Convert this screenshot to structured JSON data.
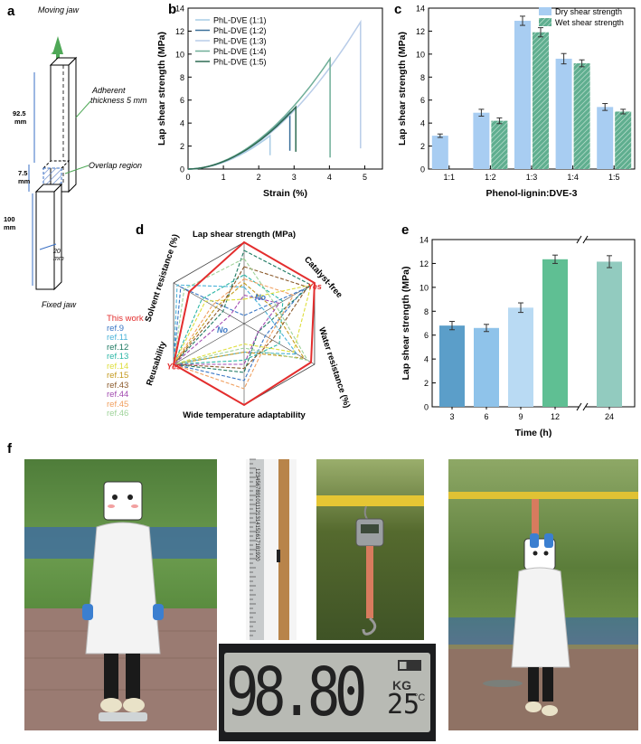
{
  "panel_labels": {
    "a": "a",
    "b": "b",
    "c": "c",
    "d": "d",
    "e": "e",
    "f": "f"
  },
  "colors": {
    "dry": "#a8cdf2",
    "wet": "#5fae8f",
    "bar_e": [
      "#5b9ec9",
      "#8fc3ea",
      "#b9daf3",
      "#5fbf93",
      "#92cbbf"
    ],
    "this_work": "#e32d2d"
  },
  "schematic": {
    "top": "Moving jaw",
    "bottom": "Fixed jaw",
    "adherent": [
      "Adherent",
      "thickness 5 mm"
    ],
    "overlap": "Overlap region",
    "dims": {
      "d1": [
        "92.5",
        "mm"
      ],
      "d2": [
        "7.5",
        "mm"
      ],
      "d3": [
        "100",
        "mm"
      ],
      "width": [
        "20",
        "mm"
      ]
    }
  },
  "chart_data": [
    {
      "id": "b",
      "type": "line",
      "xlabel": "Strain (%)",
      "ylabel": "Lap shear strength (MPa)",
      "xlim": [
        0,
        5.5
      ],
      "ylim": [
        0,
        14
      ],
      "xticks": [
        "0",
        "1",
        "2",
        "3",
        "4",
        "5"
      ],
      "yticks": [
        "0",
        "2",
        "4",
        "6",
        "8",
        "10",
        "12",
        "14"
      ],
      "series": [
        {
          "name": "PhL-DVE (1:1)",
          "color": "#a9cce5",
          "break_strain": 2.32,
          "peak": 2.9,
          "drop_to": 1.2
        },
        {
          "name": "PhL-DVE (1:2)",
          "color": "#3a6f9a",
          "break_strain": 2.88,
          "peak": 4.9,
          "drop_to": 1.6
        },
        {
          "name": "PhL-DVE (1:3)",
          "color": "#b8cce8",
          "break_strain": 4.88,
          "peak": 12.8,
          "drop_to": 1.8
        },
        {
          "name": "PhL-DVE (1:4)",
          "color": "#6fae98",
          "break_strain": 4.02,
          "peak": 9.6,
          "drop_to": 1.0
        },
        {
          "name": "PhL-DVE (1:5)",
          "color": "#2e6b52",
          "break_strain": 3.05,
          "peak": 5.4,
          "drop_to": 1.5
        }
      ]
    },
    {
      "id": "c",
      "type": "bar",
      "xlabel": "Phenol-lignin:DVE-3",
      "ylabel": "Lap shear strength (MPa)",
      "ylim": [
        0,
        14
      ],
      "yticks": [
        "0",
        "2",
        "4",
        "6",
        "8",
        "10",
        "12",
        "14"
      ],
      "categories": [
        "1:1",
        "1:2",
        "1:3",
        "1:4",
        "1:5"
      ],
      "series": [
        {
          "name": "Dry shear strength",
          "values": [
            2.9,
            4.9,
            12.9,
            9.6,
            5.4
          ],
          "errors": [
            0.15,
            0.3,
            0.4,
            0.45,
            0.3
          ]
        },
        {
          "name": "Wet shear strength",
          "values": [
            null,
            4.2,
            11.9,
            9.2,
            5.0
          ],
          "errors": [
            null,
            0.25,
            0.4,
            0.3,
            0.2
          ]
        }
      ]
    },
    {
      "id": "d",
      "type": "radar",
      "axes": [
        "Lap shear strength (MPa)",
        "Catalyst-free",
        "Water resistance (%)",
        "Wide temperature adaptability",
        "Reusability",
        "Solvent resistance (%)"
      ],
      "annotations": {
        "yes1": "Yes",
        "yes2": "Yes",
        "no1": "No",
        "no2": "No"
      },
      "legend": [
        {
          "name": "This work",
          "color": "#e32d2d",
          "values": [
            1,
            1,
            0.95,
            1,
            1,
            0.78
          ]
        },
        {
          "name": "ref.9",
          "color": "#3a76c4",
          "values": [
            0.1,
            0.85,
            0.3,
            0.7,
            1,
            0.9
          ]
        },
        {
          "name": "ref.11",
          "color": "#4bb3d9",
          "values": [
            0.45,
            0.3,
            0.75,
            0.35,
            1,
            0.95
          ]
        },
        {
          "name": "ref.12",
          "color": "#1f7a63",
          "values": [
            0.9,
            0.95,
            0.2,
            0.6,
            1,
            0.3
          ]
        },
        {
          "name": "ref.13",
          "color": "#2cb6a6",
          "values": [
            0.6,
            0.55,
            0.5,
            0.45,
            1,
            0.6
          ]
        },
        {
          "name": "ref.14",
          "color": "#dede3c",
          "values": [
            0.3,
            0.95,
            0.7,
            0.25,
            1,
            0.55
          ]
        },
        {
          "name": "ref.15",
          "color": "#c49a1e",
          "values": [
            0.5,
            0.4,
            0.85,
            0.35,
            1,
            0.4
          ]
        },
        {
          "name": "ref.43",
          "color": "#8b5a2b",
          "values": [
            0.7,
            0.9,
            0.4,
            0.55,
            1,
            0.35
          ]
        },
        {
          "name": "ref.44",
          "color": "#a24bb0",
          "values": [
            0.35,
            0.5,
            0.2,
            0.5,
            1,
            0.2
          ]
        },
        {
          "name": "ref.45",
          "color": "#f0a060",
          "values": [
            0.55,
            0.7,
            0.35,
            0.8,
            1,
            0.45
          ]
        },
        {
          "name": "ref.46",
          "color": "#9fd39a",
          "values": [
            0.8,
            0.45,
            0.9,
            0.3,
            1,
            0.85
          ]
        }
      ]
    },
    {
      "id": "e",
      "type": "bar",
      "xlabel": "Time (h)",
      "ylabel": "Lap shear strength (MPa)",
      "ylim": [
        0,
        14
      ],
      "yticks": [
        "0",
        "2",
        "4",
        "6",
        "8",
        "10",
        "12",
        "14"
      ],
      "categories": [
        "3",
        "6",
        "9",
        "12",
        "24"
      ],
      "values": [
        6.8,
        6.6,
        8.3,
        12.35,
        12.15
      ],
      "errors": [
        0.35,
        0.3,
        0.4,
        0.35,
        0.5
      ]
    }
  ],
  "scale_display": {
    "reading": "98.80",
    "unit": "KG",
    "temp": "25",
    "temp_unit": "°C"
  },
  "ruler_digits": "1234567891011121314151617181920"
}
